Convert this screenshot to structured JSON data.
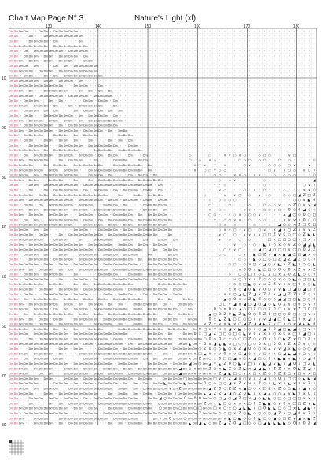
{
  "header": {
    "page_title": "Chart Map Page N° 3",
    "pattern_title": "Nature's Light (xl)"
  },
  "axes": {
    "column_labels": [
      "130",
      "140",
      "150",
      "160",
      "170",
      "180"
    ],
    "row_labels": [
      "10",
      "20",
      "30",
      "40",
      "50",
      "60",
      "70",
      "80"
    ]
  },
  "colors": {
    "grid_fine": "#d4d4d4",
    "grid_major": "#333333",
    "symbol_ink": "#222222",
    "symbol_accent": "#c0306a",
    "background": "#ffffff"
  },
  "grid": {
    "columns": 62,
    "rows": 80,
    "major_every": 10
  },
  "symbols": {
    "sky_code": "Dm",
    "light_dot": "·",
    "glyphs": [
      "∨",
      "○",
      "◇",
      "□",
      "Z",
      "x",
      "◢",
      "◣",
      "0"
    ]
  }
}
